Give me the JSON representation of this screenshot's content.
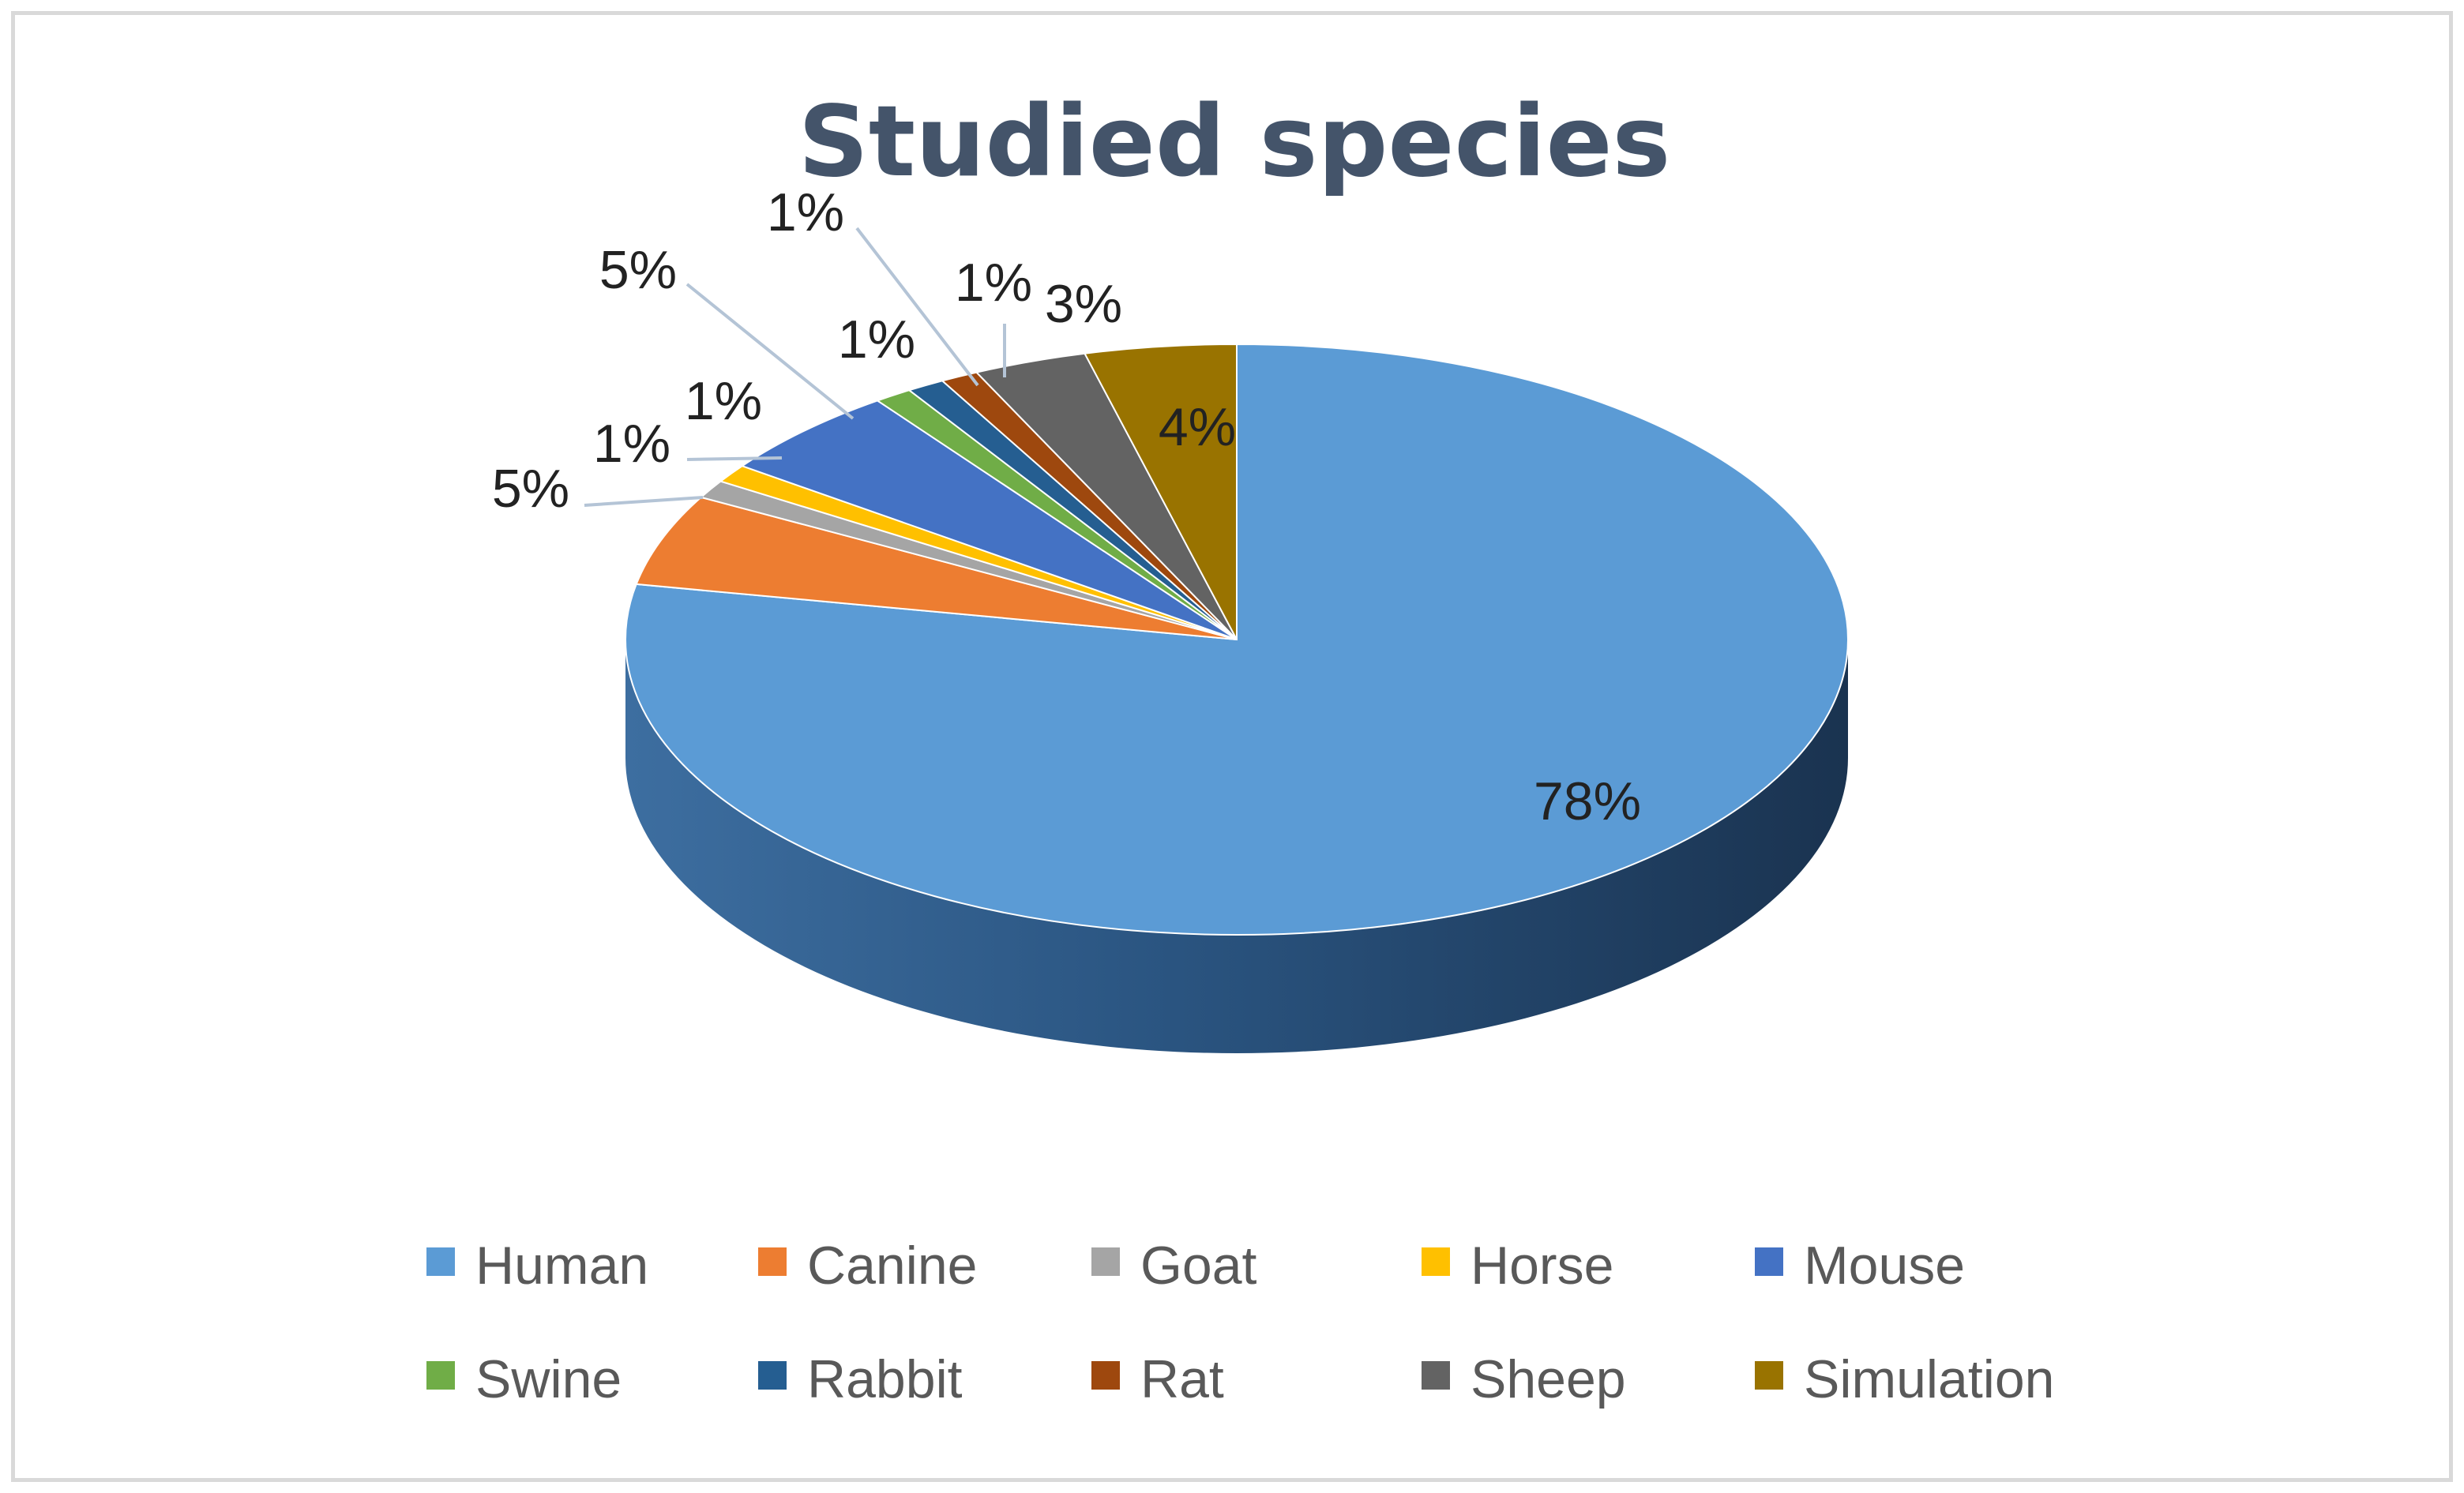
{
  "chart_data": {
    "type": "pie",
    "title": "Studied species",
    "three_d": true,
    "legend_position": "bottom",
    "slices": [
      {
        "name": "Human",
        "value": 78,
        "label": "78%",
        "color": "#5b9bd5"
      },
      {
        "name": "Canine",
        "value": 5,
        "label": "5%",
        "color": "#ed7d31"
      },
      {
        "name": "Goat",
        "value": 1,
        "label": "1%",
        "color": "#a5a5a5"
      },
      {
        "name": "Horse",
        "value": 1,
        "label": "1%",
        "color": "#ffc000"
      },
      {
        "name": "Mouse",
        "value": 5,
        "label": "5%",
        "color": "#4472c4"
      },
      {
        "name": "Swine",
        "value": 1,
        "label": "1%",
        "color": "#70ad47"
      },
      {
        "name": "Rabbit",
        "value": 1,
        "label": "1%",
        "color": "#255e91"
      },
      {
        "name": "Rat",
        "value": 1,
        "label": "1%",
        "color": "#9e480e"
      },
      {
        "name": "Sheep",
        "value": 3,
        "label": "3%",
        "color": "#636363"
      },
      {
        "name": "Simulation",
        "value": 4,
        "label": "4%",
        "color": "#997300"
      }
    ]
  }
}
